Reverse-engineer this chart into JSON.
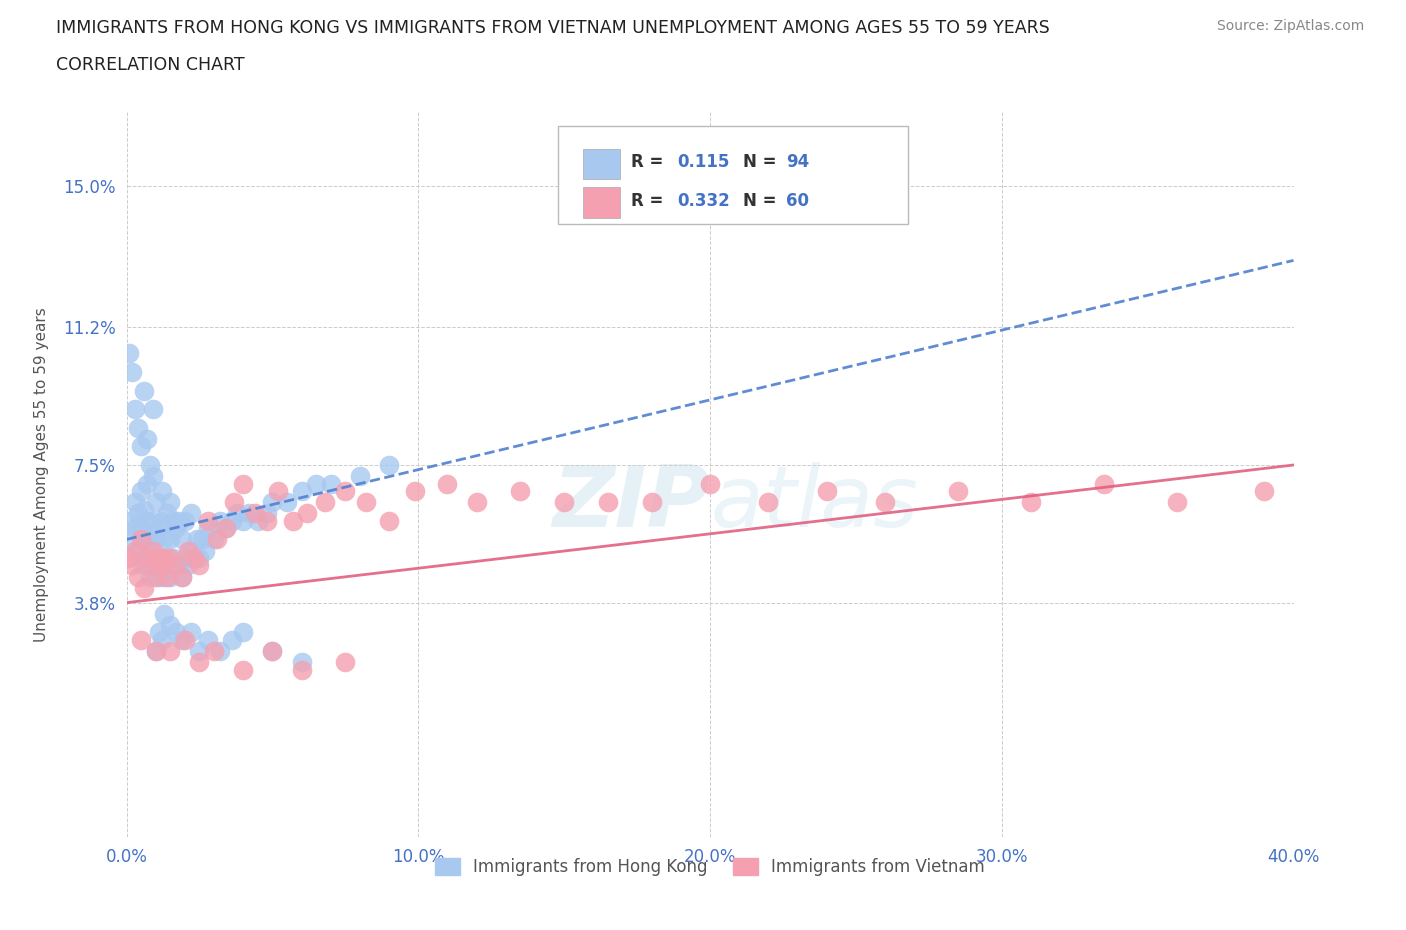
{
  "title_line1": "IMMIGRANTS FROM HONG KONG VS IMMIGRANTS FROM VIETNAM UNEMPLOYMENT AMONG AGES 55 TO 59 YEARS",
  "title_line2": "CORRELATION CHART",
  "source_text": "Source: ZipAtlas.com",
  "ylabel": "Unemployment Among Ages 55 to 59 years",
  "xmin": 0.0,
  "xmax": 0.4,
  "ymin": -0.025,
  "ymax": 0.17,
  "yticks": [
    0.038,
    0.075,
    0.112,
    0.15
  ],
  "ytick_labels": [
    "3.8%",
    "7.5%",
    "11.2%",
    "15.0%"
  ],
  "xticks": [
    0.0,
    0.1,
    0.2,
    0.3,
    0.4
  ],
  "xtick_labels": [
    "0.0%",
    "10.0%",
    "20.0%",
    "30.0%",
    "40.0%"
  ],
  "hk_color": "#a8c8f0",
  "vn_color": "#f4a0b0",
  "hk_line_color": "#5080d0",
  "vn_line_color": "#e06080",
  "grid_color": "#cccccc",
  "background_color": "#ffffff",
  "watermark": "ZIPatlas",
  "legend_label_hk": "Immigrants from Hong Kong",
  "legend_label_vn": "Immigrants from Vietnam",
  "hk_x": [
    0.001,
    0.002,
    0.003,
    0.003,
    0.004,
    0.004,
    0.005,
    0.005,
    0.005,
    0.006,
    0.006,
    0.006,
    0.007,
    0.007,
    0.007,
    0.008,
    0.008,
    0.009,
    0.009,
    0.009,
    0.01,
    0.01,
    0.01,
    0.011,
    0.011,
    0.012,
    0.012,
    0.012,
    0.013,
    0.013,
    0.014,
    0.014,
    0.015,
    0.015,
    0.015,
    0.016,
    0.016,
    0.017,
    0.017,
    0.018,
    0.018,
    0.019,
    0.019,
    0.02,
    0.02,
    0.021,
    0.022,
    0.022,
    0.023,
    0.024,
    0.025,
    0.026,
    0.027,
    0.028,
    0.03,
    0.032,
    0.034,
    0.036,
    0.038,
    0.04,
    0.042,
    0.045,
    0.048,
    0.05,
    0.055,
    0.06,
    0.065,
    0.07,
    0.08,
    0.09,
    0.001,
    0.002,
    0.003,
    0.004,
    0.005,
    0.006,
    0.007,
    0.008,
    0.009,
    0.01,
    0.011,
    0.012,
    0.013,
    0.015,
    0.017,
    0.019,
    0.022,
    0.025,
    0.028,
    0.032,
    0.036,
    0.04,
    0.05,
    0.06
  ],
  "hk_y": [
    0.06,
    0.055,
    0.058,
    0.065,
    0.052,
    0.062,
    0.05,
    0.058,
    0.068,
    0.048,
    0.055,
    0.063,
    0.05,
    0.06,
    0.07,
    0.045,
    0.055,
    0.05,
    0.06,
    0.072,
    0.048,
    0.055,
    0.065,
    0.045,
    0.058,
    0.05,
    0.06,
    0.068,
    0.045,
    0.055,
    0.05,
    0.062,
    0.045,
    0.055,
    0.065,
    0.05,
    0.06,
    0.048,
    0.058,
    0.048,
    0.06,
    0.045,
    0.055,
    0.05,
    0.06,
    0.048,
    0.052,
    0.062,
    0.05,
    0.055,
    0.05,
    0.055,
    0.052,
    0.058,
    0.055,
    0.06,
    0.058,
    0.06,
    0.062,
    0.06,
    0.062,
    0.06,
    0.062,
    0.065,
    0.065,
    0.068,
    0.07,
    0.07,
    0.072,
    0.075,
    0.105,
    0.1,
    0.09,
    0.085,
    0.08,
    0.095,
    0.082,
    0.075,
    0.09,
    0.025,
    0.03,
    0.028,
    0.035,
    0.032,
    0.03,
    0.028,
    0.03,
    0.025,
    0.028,
    0.025,
    0.028,
    0.03,
    0.025,
    0.022
  ],
  "vn_x": [
    0.001,
    0.002,
    0.003,
    0.004,
    0.005,
    0.006,
    0.007,
    0.008,
    0.009,
    0.01,
    0.011,
    0.012,
    0.013,
    0.014,
    0.015,
    0.017,
    0.019,
    0.021,
    0.023,
    0.025,
    0.028,
    0.031,
    0.034,
    0.037,
    0.04,
    0.044,
    0.048,
    0.052,
    0.057,
    0.062,
    0.068,
    0.075,
    0.082,
    0.09,
    0.099,
    0.11,
    0.12,
    0.135,
    0.15,
    0.165,
    0.18,
    0.2,
    0.22,
    0.24,
    0.26,
    0.285,
    0.31,
    0.335,
    0.36,
    0.39,
    0.005,
    0.01,
    0.015,
    0.02,
    0.025,
    0.03,
    0.04,
    0.05,
    0.06,
    0.075
  ],
  "vn_y": [
    0.05,
    0.048,
    0.052,
    0.045,
    0.055,
    0.042,
    0.05,
    0.048,
    0.052,
    0.045,
    0.05,
    0.048,
    0.05,
    0.045,
    0.05,
    0.048,
    0.045,
    0.052,
    0.05,
    0.048,
    0.06,
    0.055,
    0.058,
    0.065,
    0.07,
    0.062,
    0.06,
    0.068,
    0.06,
    0.062,
    0.065,
    0.068,
    0.065,
    0.06,
    0.068,
    0.07,
    0.065,
    0.068,
    0.065,
    0.065,
    0.065,
    0.07,
    0.065,
    0.068,
    0.065,
    0.068,
    0.065,
    0.07,
    0.065,
    0.068,
    0.028,
    0.025,
    0.025,
    0.028,
    0.022,
    0.025,
    0.02,
    0.025,
    0.02,
    0.022
  ],
  "hk_trend_x0": 0.0,
  "hk_trend_x1": 0.4,
  "hk_trend_y0": 0.055,
  "hk_trend_y1": 0.13,
  "vn_trend_x0": 0.0,
  "vn_trend_x1": 0.4,
  "vn_trend_y0": 0.038,
  "vn_trend_y1": 0.075
}
